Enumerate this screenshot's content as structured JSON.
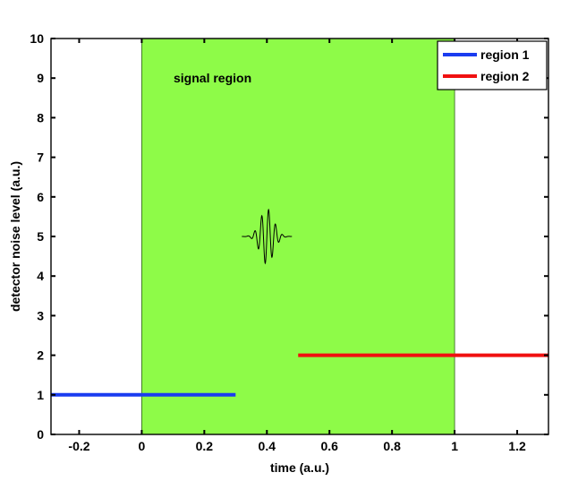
{
  "chart_data": {
    "type": "line",
    "xlabel": "time (a.u.)",
    "ylabel": "detector noise level (a.u.)",
    "xlim": [
      -0.29,
      1.3
    ],
    "ylim": [
      0,
      10
    ],
    "xticks": [
      -0.2,
      0,
      0.2,
      0.4,
      0.6,
      0.8,
      1,
      1.2
    ],
    "xtick_labels": [
      "-0.2",
      "0",
      "0.2",
      "0.4",
      "0.6",
      "0.8",
      "1",
      "1.2"
    ],
    "yticks": [
      0,
      1,
      2,
      3,
      4,
      5,
      6,
      7,
      8,
      9,
      10
    ],
    "ytick_labels": [
      "0",
      "1",
      "2",
      "3",
      "4",
      "5",
      "6",
      "7",
      "8",
      "9",
      "10"
    ],
    "grid": false,
    "legend_position": "top-right",
    "shaded_region": {
      "label": "signal region",
      "x_start": 0,
      "x_end": 1,
      "color": "#8efb48"
    },
    "series": [
      {
        "name": "region 1",
        "color": "#1a3cf0",
        "x": [
          -0.29,
          0.3
        ],
        "y": [
          1,
          1
        ]
      },
      {
        "name": "region 2",
        "color": "#f01010",
        "x": [
          0.5,
          1.3
        ],
        "y": [
          2,
          2
        ]
      }
    ],
    "wavelet": {
      "center_x": 0.4,
      "baseline_y": 5,
      "amplitude": 0.7,
      "half_width": 0.08,
      "color": "#000000"
    }
  }
}
